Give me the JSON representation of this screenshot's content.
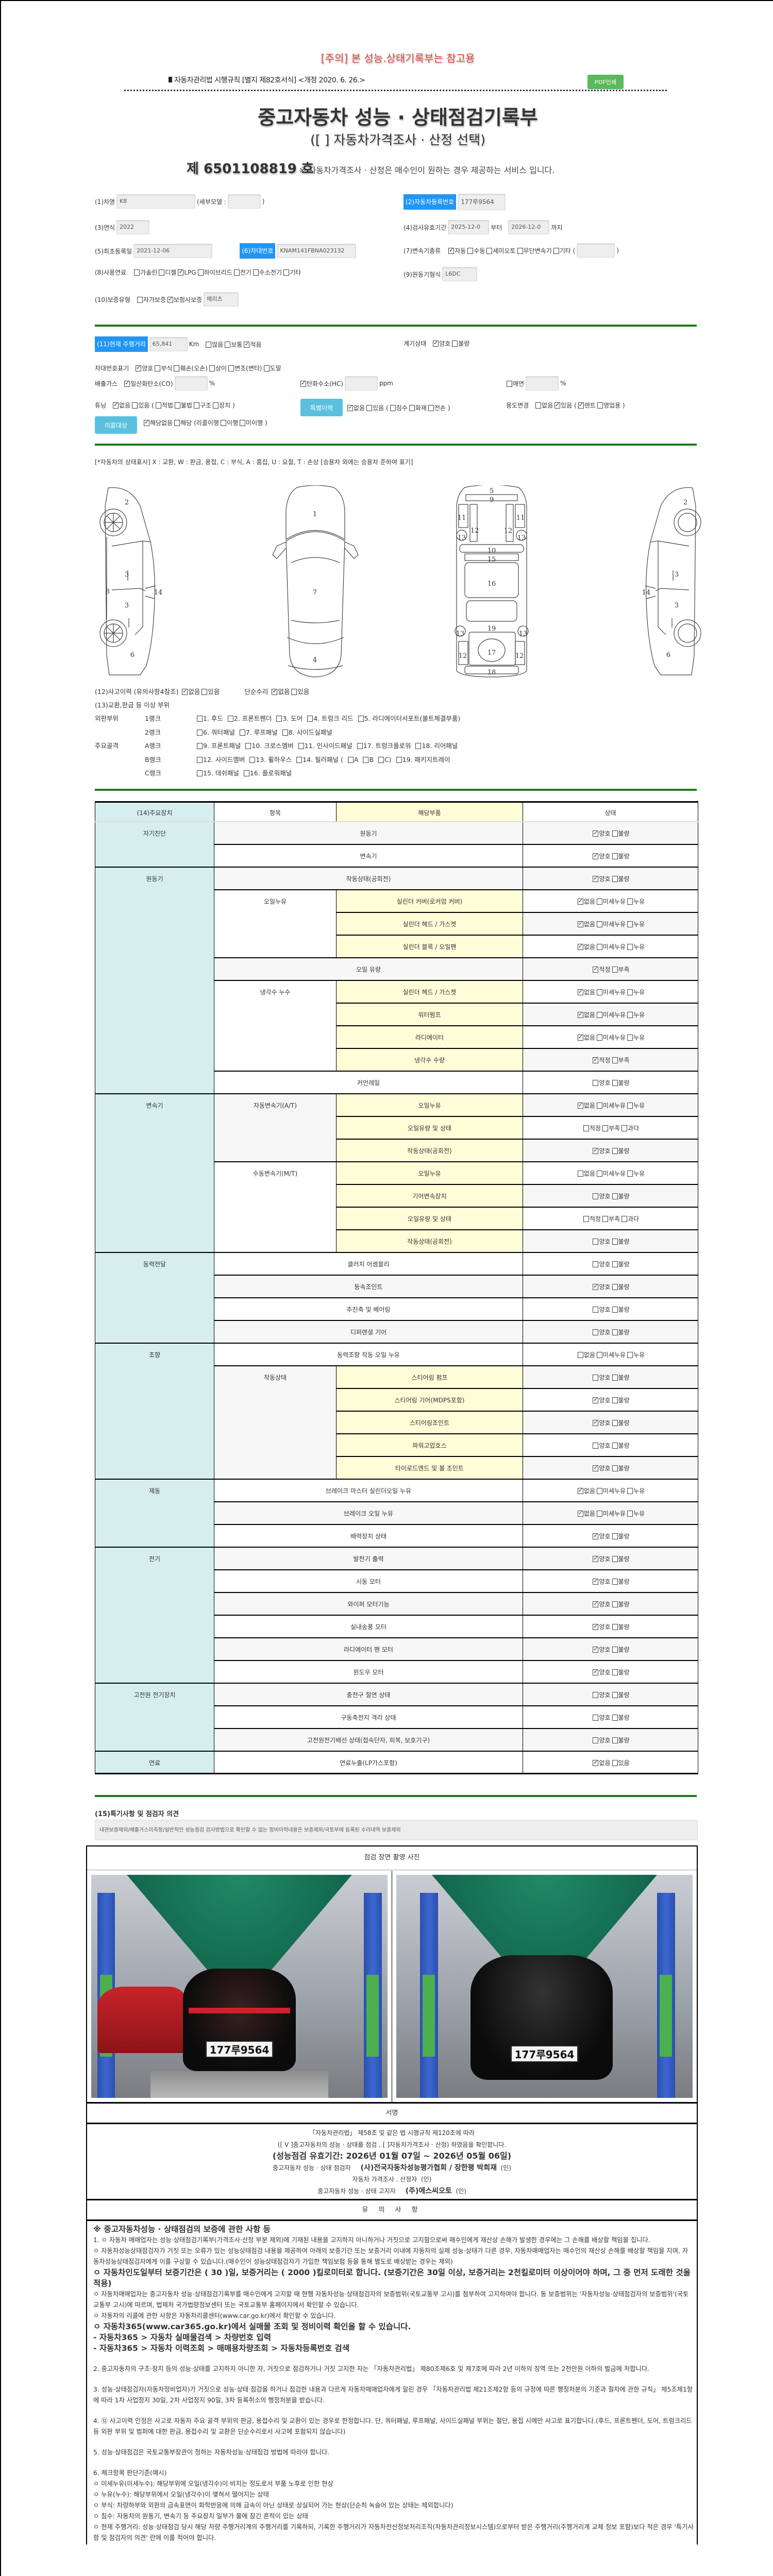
{
  "header": {
    "warning": "[주의] 본 성능.상태기록부는 참고용",
    "regulation": "자동차관리법 시행규칙 [별지 제82호서식] <개정 2020. 6. 26.>",
    "pdf_button": "PDF인쇄",
    "title": "중고자동차 성능 · 상태점검기록부",
    "subtitle": "([  ] 자동차가격조사 · 산정 선택)",
    "doc_number": "제 6501108819 호",
    "doc_note": "※ 자동차가격조사 · 산정은 매수인이 원하는 경우 제공하는 서비스 입니다."
  },
  "vehicle": {
    "name_label": "(1)차명",
    "name": "K8",
    "submodel_label": "(세부모델 :",
    "submodel": "",
    "close_paren": ")",
    "reg_label": "(2)자동차등록번호",
    "reg_no": "177루9564",
    "year_label": "(3)연식",
    "year": "2022",
    "inspect_label": "(4)검사유효기간",
    "inspect_from": "2025-12-0",
    "from_word": "부터",
    "inspect_to": "2026-12-0",
    "to_word": "까지",
    "first_reg_label": "(5)최초등록일",
    "first_reg": "2021-12-06",
    "vin_label": "(6)차대번호",
    "vin": "KNAM141FBNA023132",
    "trans_label": "(7)변속기종류",
    "trans_options": [
      {
        "l": "자동",
        "c": true
      },
      {
        "l": "수동",
        "c": false
      },
      {
        "l": "세미오토",
        "c": false
      },
      {
        "l": "무단변속기",
        "c": false
      },
      {
        "l": "기타",
        "c": false
      },
      {
        "t": "("
      }
    ],
    "trans_other": "",
    "fuel_label": "(8)사용연료",
    "fuel_options": [
      {
        "l": "가솔린",
        "c": false
      },
      {
        "l": "디젤",
        "c": false
      },
      {
        "l": "LPG",
        "c": true
      },
      {
        "l": "하이브리드",
        "c": false
      },
      {
        "l": "전기",
        "c": false
      },
      {
        "l": "수소전기",
        "c": false
      },
      {
        "l": "기타",
        "c": false
      }
    ],
    "engine_label": "(9)원동기형식",
    "engine": "L6DC",
    "warranty_label": "(10)보증유형",
    "warranty_options": [
      {
        "l": "자가보증",
        "c": false
      },
      {
        "l": "보험사보증",
        "c": true
      }
    ],
    "insurer": "메리츠"
  },
  "status": {
    "mileage_label": "(11)현재 주행거리",
    "mileage": "65,841",
    "mileage_unit": "Km",
    "mileage_options": [
      {
        "l": "많음",
        "c": false
      },
      {
        "l": "보통",
        "c": false
      },
      {
        "l": "적음",
        "c": true
      }
    ],
    "gauge_label": "계기상태",
    "gauge_options": [
      {
        "l": "양호",
        "c": true
      },
      {
        "l": "불량",
        "c": false
      }
    ],
    "vin_mark_label": "차대번호표기",
    "vin_mark_options": [
      {
        "l": "양호",
        "c": true
      },
      {
        "l": "부식",
        "c": false
      },
      {
        "l": "훼손(오손)",
        "c": false
      },
      {
        "l": "상이",
        "c": false
      },
      {
        "l": "변조(변타)",
        "c": false
      },
      {
        "l": "도말",
        "c": false
      }
    ],
    "emission_label": "배출가스",
    "co": {
      "l": "일산화탄소(CO)",
      "c": true
    },
    "co_value": "",
    "co_unit": "%",
    "hc": {
      "l": "탄화수소(HC)",
      "c": true
    },
    "hc_value": "",
    "hc_unit": "ppm",
    "smoke": {
      "l": "매연",
      "c": false
    },
    "smoke_value": "",
    "smoke_unit": "%",
    "tuning_label": "튜닝",
    "tuning_options": [
      {
        "l": "없음",
        "c": true
      },
      {
        "l": "있음",
        "c": false
      },
      {
        "t": "("
      },
      {
        "l": "적법",
        "c": false
      },
      {
        "l": "불법",
        "c": false
      },
      {
        "l": "구조",
        "c": false
      },
      {
        "l": "장치",
        "c": false
      },
      {
        "t": ")"
      }
    ],
    "special_label": "특별이력",
    "special_options": [
      {
        "l": "없음",
        "c": true
      },
      {
        "l": "있음",
        "c": false
      },
      {
        "t": "("
      },
      {
        "l": "침수",
        "c": false
      },
      {
        "l": "화재",
        "c": false
      },
      {
        "l": "전손",
        "c": false
      },
      {
        "t": ")"
      }
    ],
    "usage_label": "용도변경",
    "usage_options": [
      {
        "l": "없음",
        "c": false
      },
      {
        "l": "있음",
        "c": true
      },
      {
        "t": "("
      },
      {
        "l": "렌트",
        "c": true
      },
      {
        "l": "영업용",
        "c": false
      },
      {
        "t": ")"
      }
    ],
    "recall_label": "리콜대상",
    "recall_options": [
      {
        "l": "해당없음",
        "c": true
      },
      {
        "l": "해당",
        "c": false
      },
      {
        "t": "(리콜이행"
      },
      {
        "l": "이행",
        "c": false
      },
      {
        "l": "미이행",
        "c": false
      },
      {
        "t": ")"
      }
    ]
  },
  "body": {
    "legend": "[*자동차의 상태표시] X : 교환, W : 판금, 용접, C : 부식, A : 흠집, U : 요철, T : 손상 [승용차 외에는 승용차 준하여 표기]",
    "diagram_labels": {
      "side_left": [
        "2",
        "3",
        "3",
        "8",
        "14",
        "6"
      ],
      "top": [
        "1",
        "7",
        "4"
      ],
      "bottom": [
        "5",
        "9",
        "11",
        "11",
        "12",
        "12",
        "13",
        "13",
        "10",
        "15",
        "16",
        "19",
        "13",
        "13",
        "17",
        "12",
        "12",
        "18"
      ],
      "side_right": [
        "2",
        "3",
        "3",
        "14",
        "6"
      ]
    },
    "accident_label": "(12)사고이력 (유의사항4참조)",
    "accident_options": [
      {
        "l": "없음",
        "c": true
      },
      {
        "l": "있음",
        "c": false
      }
    ],
    "simple_repair_label": "단순수리",
    "simple_repair_options": [
      {
        "l": "없음",
        "c": true
      },
      {
        "l": "있음",
        "c": false
      }
    ],
    "parts_label": "(13)교환,판금 등 이상 부위",
    "ranks": [
      {
        "group": "외판부위",
        "rank": "1랭크",
        "items": [
          {
            "l": "1. 후드",
            "c": false
          },
          {
            "l": "2. 프론트펜더",
            "c": false
          },
          {
            "l": "3. 도어",
            "c": false
          },
          {
            "l": "4. 트렁크 리드",
            "c": false
          },
          {
            "l": "5. 라디에이터서포트(볼트체결부품)",
            "c": false
          }
        ]
      },
      {
        "group": "",
        "rank": "2랭크",
        "items": [
          {
            "l": "6. 쿼터패널",
            "c": false
          },
          {
            "l": "7. 루프패널",
            "c": false
          },
          {
            "l": "8. 사이드실패널",
            "c": false
          }
        ]
      },
      {
        "group": "주요골격",
        "rank": "A랭크",
        "items": [
          {
            "l": "9. 프론트패널",
            "c": false
          },
          {
            "l": "10. 크로스멤버",
            "c": false
          },
          {
            "l": "11. 인사이드패널",
            "c": false
          },
          {
            "l": "17. 트렁크플로워",
            "c": false
          },
          {
            "l": "18. 리어패널",
            "c": false
          }
        ]
      },
      {
        "group": "",
        "rank": "B랭크",
        "items": [
          {
            "l": "12. 사이드멤버",
            "c": false
          },
          {
            "l": "13. 휠하우스",
            "c": false
          },
          {
            "l": "14. 필러패널 (",
            "c": false
          },
          {
            "l": "A",
            "c": false
          },
          {
            "l": "B",
            "c": false
          },
          {
            "l": "C)",
            "c": false
          },
          {
            "l": "19. 패키지트레이",
            "c": false
          }
        ]
      },
      {
        "group": "",
        "rank": "C랭크",
        "items": [
          {
            "l": "15. 대쉬패널",
            "c": false
          },
          {
            "l": "16. 플로워패널",
            "c": false
          }
        ]
      }
    ]
  },
  "devices": {
    "headers": [
      "(14)주요장치",
      "항목",
      "해당부품",
      "상태"
    ],
    "groups": [
      {
        "name": "자기진단",
        "rows": [
          {
            "item": "원동기",
            "opts": [
              "양호",
              "불량"
            ],
            "chk": 0
          },
          {
            "item": "변속기",
            "opts": [
              "양호",
              "불량"
            ],
            "chk": 0
          }
        ]
      },
      {
        "name": "원동기",
        "rows": [
          {
            "item": "작동상태(공회전)",
            "opts": [
              "양호",
              "불량"
            ],
            "chk": 0
          },
          {
            "sub": "오일누유",
            "part": "실린더 커버(로커암 커버)",
            "opts": [
              "없음",
              "미세누유",
              "누유"
            ],
            "chk": 0
          },
          {
            "sub": "오일누유",
            "part": "실린더 헤드 / 가스켓",
            "opts": [
              "없음",
              "미세누유",
              "누유"
            ],
            "chk": 0
          },
          {
            "sub": "오일누유",
            "part": "실린더 블록 / 오일팬",
            "opts": [
              "없음",
              "미세누유",
              "누유"
            ],
            "chk": 0
          },
          {
            "item": "오일 유량",
            "opts": [
              "적정",
              "부족"
            ],
            "chk": 0
          },
          {
            "sub": "냉각수 누수",
            "part": "실린더 헤드 / 가스켓",
            "opts": [
              "없음",
              "미세누유",
              "누유"
            ],
            "chk": 0
          },
          {
            "sub": "냉각수 누수",
            "part": "워터펌프",
            "opts": [
              "없음",
              "미세누유",
              "누유"
            ],
            "chk": 0
          },
          {
            "sub": "냉각수 누수",
            "part": "라디에이터",
            "opts": [
              "없음",
              "미세누유",
              "누유"
            ],
            "chk": 0
          },
          {
            "sub": "냉각수 누수",
            "part": "냉각수 수량",
            "opts": [
              "적정",
              "부족"
            ],
            "chk": 0
          },
          {
            "item": "커먼레일",
            "opts": [
              "양호",
              "불량"
            ],
            "chk": null
          }
        ]
      },
      {
        "name": "변속기",
        "rows": [
          {
            "sub": "자동변속기(A/T)",
            "part": "오일누유",
            "opts": [
              "없음",
              "미세누유",
              "누유"
            ],
            "chk": 0
          },
          {
            "sub": "자동변속기(A/T)",
            "part": "오일유량 및 상태",
            "opts": [
              "적정",
              "부족",
              "과다"
            ],
            "chk": null
          },
          {
            "sub": "자동변속기(A/T)",
            "part": "작동상태(공회전)",
            "opts": [
              "양호",
              "불량"
            ],
            "chk": 0
          },
          {
            "sub": "수동변속기(M/T)",
            "part": "오일누유",
            "opts": [
              "없음",
              "미세누유",
              "누유"
            ],
            "chk": null
          },
          {
            "sub": "수동변속기(M/T)",
            "part": "기어변속장치",
            "opts": [
              "양호",
              "불량"
            ],
            "chk": null
          },
          {
            "sub": "수동변속기(M/T)",
            "part": "오일유량 및 상태",
            "opts": [
              "적정",
              "부족",
              "과다"
            ],
            "chk": null
          },
          {
            "sub": "수동변속기(M/T)",
            "part": "작동상태(공회전)",
            "opts": [
              "양호",
              "불량"
            ],
            "chk": null
          }
        ]
      },
      {
        "name": "동력전달",
        "rows": [
          {
            "item": "클러치 어셈블리",
            "opts": [
              "양호",
              "불량"
            ],
            "chk": null
          },
          {
            "item": "등속조인트",
            "opts": [
              "양호",
              "불량"
            ],
            "chk": 0
          },
          {
            "item": "추진축 및 베어링",
            "opts": [
              "양호",
              "불량"
            ],
            "chk": null
          },
          {
            "item": "디퍼렌셜 기어",
            "opts": [
              "양호",
              "불량"
            ],
            "chk": null
          }
        ]
      },
      {
        "name": "조향",
        "rows": [
          {
            "item": "동력조향 작동 오일 누유",
            "opts": [
              "없음",
              "미세누유",
              "누유"
            ],
            "chk": null
          },
          {
            "sub": "작동상태",
            "part": "스티어링 펌프",
            "opts": [
              "양호",
              "불량"
            ],
            "chk": null
          },
          {
            "sub": "작동상태",
            "part": "스티어링 기어(MDPS포함)",
            "opts": [
              "양호",
              "불량"
            ],
            "chk": 0
          },
          {
            "sub": "작동상태",
            "part": "스티어링조인트",
            "opts": [
              "양호",
              "불량"
            ],
            "chk": 0
          },
          {
            "sub": "작동상태",
            "part": "파워고압호스",
            "opts": [
              "양호",
              "불량"
            ],
            "chk": null
          },
          {
            "sub": "작동상태",
            "part": "타이로드엔드 및 볼 조인트",
            "opts": [
              "양호",
              "불량"
            ],
            "chk": 0
          }
        ]
      },
      {
        "name": "제동",
        "rows": [
          {
            "item": "브레이크 마스터 실린더오일 누유",
            "opts": [
              "없음",
              "미세누유",
              "누유"
            ],
            "chk": 0
          },
          {
            "item": "브레이크 오일 누유",
            "opts": [
              "없음",
              "미세누유",
              "누유"
            ],
            "chk": 0
          },
          {
            "item": "배력장치 상태",
            "opts": [
              "양호",
              "불량"
            ],
            "chk": 0
          }
        ]
      },
      {
        "name": "전기",
        "rows": [
          {
            "item": "발전기 출력",
            "opts": [
              "양호",
              "불량"
            ],
            "chk": 0
          },
          {
            "item": "시동 모터",
            "opts": [
              "양호",
              "불량"
            ],
            "chk": 0
          },
          {
            "item": "와이퍼 모터기능",
            "opts": [
              "양호",
              "불량"
            ],
            "chk": 0
          },
          {
            "item": "실내송풍 모터",
            "opts": [
              "양호",
              "불량"
            ],
            "chk": 0
          },
          {
            "item": "라디에이터 팬 모터",
            "opts": [
              "양호",
              "불량"
            ],
            "chk": 0
          },
          {
            "item": "윈도우 모터",
            "opts": [
              "양호",
              "불량"
            ],
            "chk": 0
          }
        ]
      },
      {
        "name": "고전원 전기장치",
        "rows": [
          {
            "item": "충전구 절연 상태",
            "opts": [
              "양호",
              "불량"
            ],
            "chk": null
          },
          {
            "item": "구동축전지 격리 상태",
            "opts": [
              "양호",
              "불량"
            ],
            "chk": null
          },
          {
            "item": "고전원전기배선 상태(접속단자, 피복, 보호기구)",
            "opts": [
              "양호",
              "불량"
            ],
            "chk": null
          }
        ]
      },
      {
        "name": "연료",
        "rows": [
          {
            "item": "연료누출(LP가스포함)",
            "opts": [
              "없음",
              "있음"
            ],
            "chk": 0
          }
        ]
      }
    ]
  },
  "opinion": {
    "label": "(15)특기사항 및 점검자 의견",
    "text": "내관보증제외/배출가스미측정/일반적인 성능점검 검사방법으로 확인할 수 없는 정비이력내용은 보증제외/국토부에 등록된 수리내역 보증제외"
  },
  "photos": {
    "header": "점검 장면 촬영 사진",
    "plate": "177루9564"
  },
  "signature": {
    "header": "서명",
    "law": "「자동차관리법」 제58조 및 같은 법 시행규칙 제120조에 따라",
    "confirm": "([ V ]중고자동차의 성능 · 상태를 점검 , [  ]자동차가격조사 · 산정) 하였음을 확인합니다.",
    "validity": "(성능점검 유효기간: 2026년 01월 07일 ~ 2026년 05월 06일)",
    "inspector_label": "중고자동차 성능 · 상태 점검자",
    "inspector": "(사)전국자동차성능평가협회 / 장한평 박희재",
    "seal1": "(인)",
    "appraiser_label": "자동차 가격조사 . 산정자",
    "seal2": "(인)",
    "notifier_label": "중고자동차 성능 · 상태 고지자",
    "notifier": "(주)에스씨오토",
    "seal3": "(인)"
  },
  "notes": {
    "header": "유 의 사 항",
    "heading": "※ 중고자동차성능 · 상태점검의 보증에 관한 사항 등",
    "p1": "1. ㅇ 자동차 매매업자는 성능·상태점검기록부(가격조사·산정 부분 제외)에 기재된 내용을 고지하지 아니하거나 거짓으로 고지함으로써 매수인에게 재산상 손해가 발생한 경우에는 그 손해를 배상할 책임을 집니다.",
    "p1b": "ㅇ 자동차성능상태점검자가 거짓 또는 오류가 있는 성능상태점검 내용을 제공하여 아래의 보증기간 또는 보증거리 이내에 자동차의 실제 성능·상태가 다른 경우, 자동차매매업자는 매수인의 재산상 손해를 배상할 책임을 지며, 자동차성능상태점검자에게 이를 구상할 수 있습니다.(매수인이 성능상태점검자가 가입한 책임보험 등을 통해 별도로 배상받는 경우는 제외)",
    "p1c": "ㅇ 자동차인도일부터 보증기간은 ( 30 )일, 보증거리는 ( 2000 )킬로미터로 합니다. (보증기간은 30일 이상, 보증거리는 2천킬로미터 이상이어야 하며, 그 중 먼저 도래한 것을 적용)",
    "p1d": "ㅇ 자동차매매업자는 중고자동차 성능·상태점검기록부를 매수인에게 고지할 때 현행 자동차성능·상태점검자의 보증범위(국토교통부 고시)를 첨부하여 고지하여야 합니다. 동 보증범위는 '자동차성능·상태점검자의 보증범위'(국토교통부 고시)에 따르며, 법제처 국가법령정보센터 또는 국토교통부 홈페이지에서 확인할 수 있습니다.",
    "p1e": "ㅇ 자동차의 리콜에 관한 사항은 자동차리콜센터(www.car.go.kr)에서 확인할 수 있습니다.",
    "p1f": "ㅇ 자동차365(www.car365.go.kr)에서 실매물 조회 및 정비이력 확인을 할 수 있습니다.",
    "p1g": "- 자동차365 > 자동차 실매물검색 > 차량번호 입력",
    "p1h": "- 자동차365 > 자동차 이력조회 > 매매용차량조회 > 자동차등록번호 검색",
    "p2": "2. 중고자동차의 구조·장치 등의 성능·상태를 고지하지 아니한 자, 거짓으로 점검하거나 거짓 고지한 자는 「자동차관리법」 제80조제6호 및 제7호에 따라 2년 이하의 징역 또는 2천만원 이하의 벌금에 처합니다.",
    "p3": "3. 성능·상태점검자(자동차정비업자)가 거짓으로 성능·상태 점검을 하거나 점검한 내용과 다르게 자동차매매업자에게 알린 경우 「자동차관리법 제21조제2항 등의 규정에 따른 행정처분의 기준과 절차에 관한 규칙」 제5조제1항에 따라 1차 사업정지 30일, 2차 사업정지 90일, 3차 등록취소의 행정처분을 받습니다.",
    "p4": "4. ⑫ 사고이력 인정은 사고로 자동차 주요 골격 부위의 판금, 용접수리 및 교환이 있는 경우로 한정합니다. 단, 쿼터패널, 루프패널, 사이드실패널 부위는 절단, 용접 시에만 사고로 표기합니다.(후드, 프론트펜더, 도어, 트렁크리드 등 외판 부위 및 범퍼에 대한 판금, 용접수리 및 교환은 단순수리로서 사고에 포함되지 않습니다)",
    "p5": "5. 성능·상태점검은 국토교통부장관이 정하는 자동차성능·상태점검 방법에 따라야 합니다.",
    "p6": "6. 체크항목 판단기준(예시)",
    "p6a": "ㅇ 미세누유(미세누수): 해당부위에 오일(냉각수)이 비치는 정도로서 부품 노후로 인한 현상",
    "p6b": "ㅇ 누유(누수): 해당부위에서 오일(냉각수)이 맺혀서 떨어지는 상태",
    "p6c": "ㅇ 부식: 차량하부와 외판의 금속표면이 화학반응에 의해 금속이 아닌 상태로 상실되어 가는 현상(단순히 녹슬어 있는 상태는 제외합니다)",
    "p6d": "ㅇ 침수: 자동차의 원동기, 변속기 등 주요장치 일부가 물에 잠긴 흔적이 있는 상태",
    "p6e": "ㅇ 현재 주행거리: 성능·상태점검 당시 해당 차량 주행거리계의 주행거리를 기록하되, 기록한 주행거리가 자동차전산정보처리조직(자동차관리정보시스템)으로부터 받은 주행거리(주행거리계 교체 정보 포함)보다 적은 경우 '특기사항 및 점검자의 의견' 란에 이를 적어야 합니다."
  },
  "colors": {
    "accent_blue": "#2196f3",
    "light_blue": "#5bc0de",
    "pdf_green": "#5cb85c",
    "divider_green": "#1d7a1d",
    "warning_red": "#e0483e",
    "group_cell": "#d6eeee",
    "part_cell": "#fffdd8"
  }
}
